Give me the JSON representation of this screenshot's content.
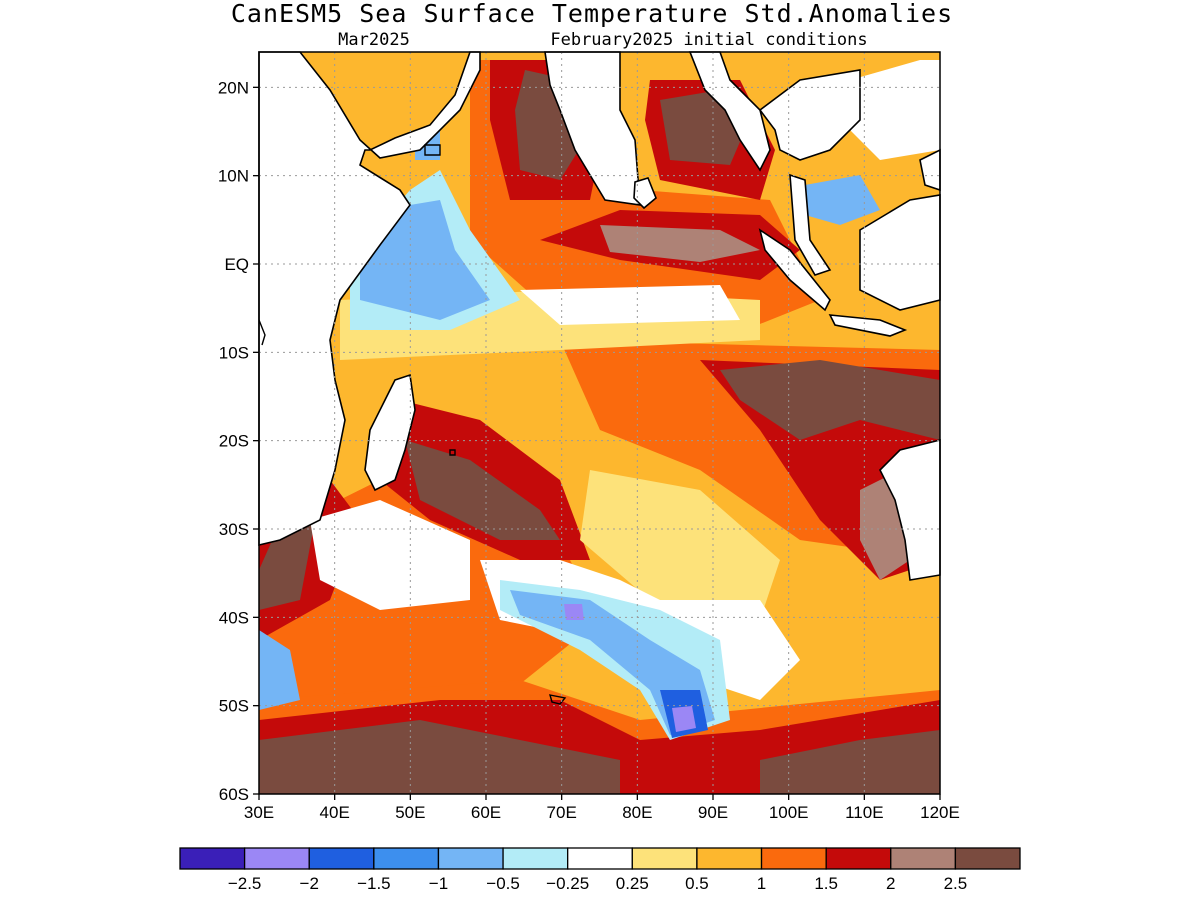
{
  "title": "CanESM5 Sea Surface Temperature Std.Anomalies",
  "subtitle_left": "Mar2025",
  "subtitle_right": "February2025 initial conditions",
  "map": {
    "lon_range": [
      30,
      120
    ],
    "lat_range": [
      -60,
      24
    ],
    "lat_ticks": [
      {
        "value": 20,
        "label": "20N"
      },
      {
        "value": 10,
        "label": "10N"
      },
      {
        "value": 0,
        "label": "EQ"
      },
      {
        "value": -10,
        "label": "10S"
      },
      {
        "value": -20,
        "label": "20S"
      },
      {
        "value": -30,
        "label": "30S"
      },
      {
        "value": -40,
        "label": "40S"
      },
      {
        "value": -50,
        "label": "50S"
      },
      {
        "value": -60,
        "label": "60S"
      }
    ],
    "lon_ticks": [
      {
        "value": 30,
        "label": "30E"
      },
      {
        "value": 40,
        "label": "40E"
      },
      {
        "value": 50,
        "label": "50E"
      },
      {
        "value": 60,
        "label": "60E"
      },
      {
        "value": 70,
        "label": "70E"
      },
      {
        "value": 80,
        "label": "80E"
      },
      {
        "value": 90,
        "label": "90E"
      },
      {
        "value": 100,
        "label": "100E"
      },
      {
        "value": 110,
        "label": "110E"
      },
      {
        "value": 120,
        "label": "120E"
      }
    ],
    "grid": true,
    "land_color": "#ffffff"
  },
  "colorbar": {
    "colors": [
      "#3a1fb8",
      "#9b87f5",
      "#1f5fe0",
      "#3d8fee",
      "#74b5f5",
      "#b3ecf7",
      "#ffffff",
      "#fde27a",
      "#fdb72e",
      "#fa6a0d",
      "#c40a0a",
      "#ae8276",
      "#7a4b3f"
    ],
    "labels": [
      "−2.5",
      "−2",
      "−1.5",
      "−1",
      "−0.5",
      "−0.25",
      "0.25",
      "0.5",
      "1",
      "1.5",
      "2",
      "2.5"
    ]
  }
}
